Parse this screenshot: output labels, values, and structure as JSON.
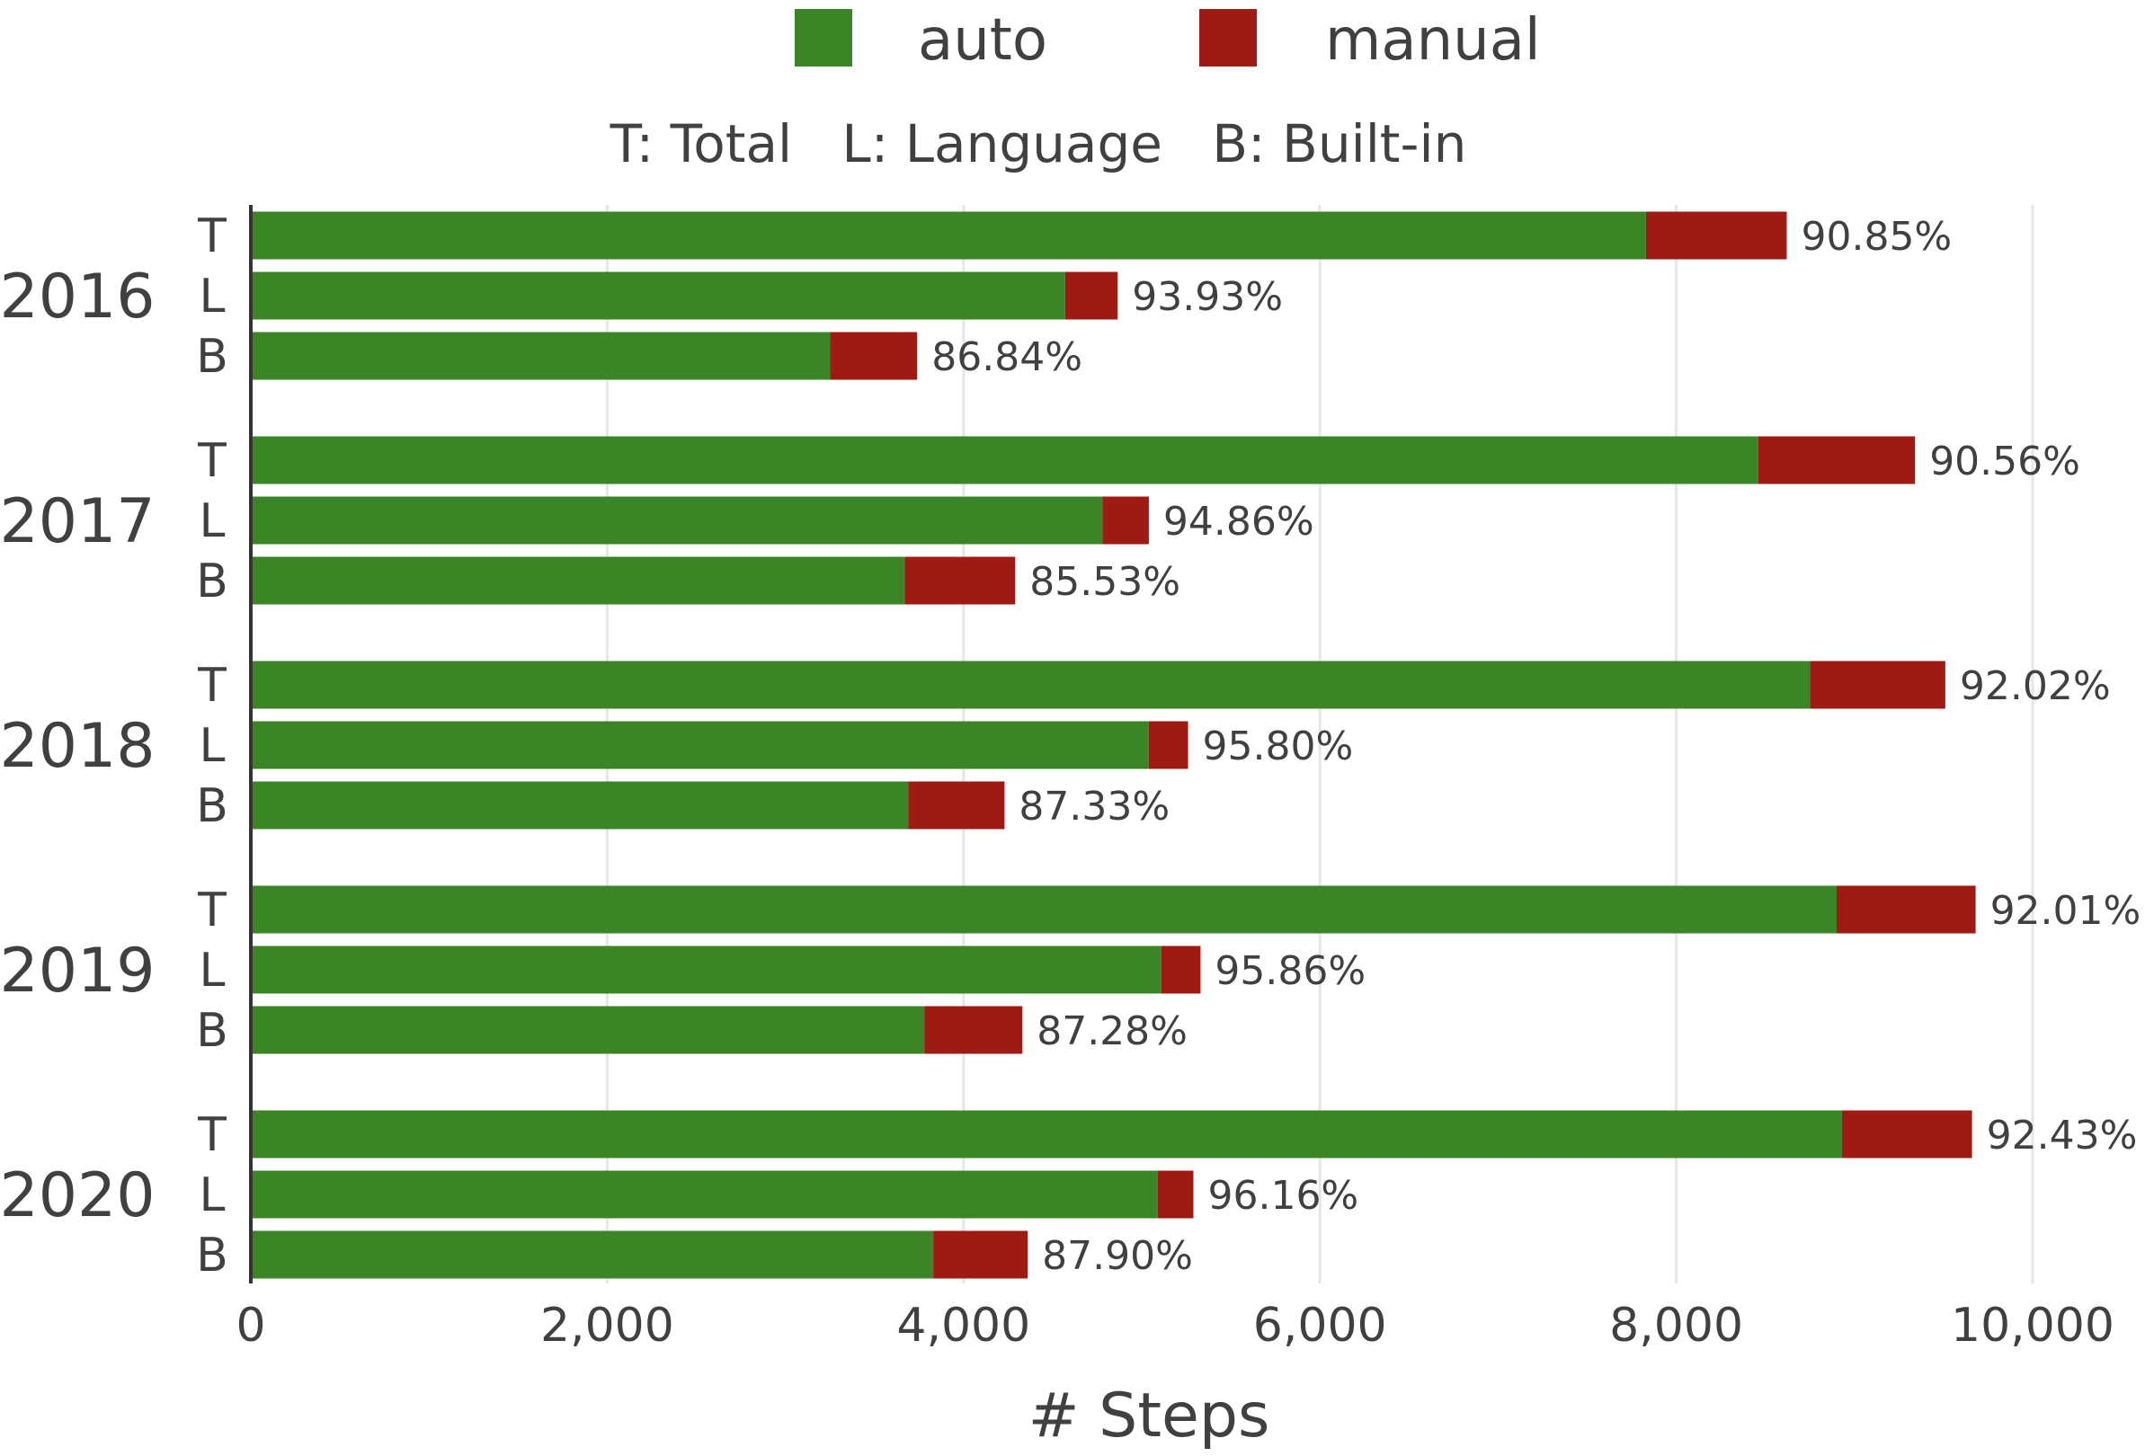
{
  "chart_data": {
    "type": "bar",
    "orientation": "horizontal",
    "stacked": true,
    "subtitle": "T: Total   L: Language   B: Built-in",
    "xlabel": "# Steps",
    "ylabel": "",
    "xlim": [
      0,
      10000
    ],
    "xticks": [
      {
        "value": 0,
        "label": "0"
      },
      {
        "value": 2000,
        "label": "2,000"
      },
      {
        "value": 4000,
        "label": "4,000"
      },
      {
        "value": 6000,
        "label": "6,000"
      },
      {
        "value": 8000,
        "label": "8,000"
      },
      {
        "value": 10000,
        "label": "10,000"
      }
    ],
    "grid": true,
    "legend": {
      "position": "top",
      "entries": [
        {
          "name": "auto",
          "color": "#3c8527"
        },
        {
          "name": "manual",
          "color": "#9e1b14"
        }
      ]
    },
    "groups": [
      {
        "year": "2016",
        "rows": [
          {
            "label": "T",
            "auto": 7830,
            "manual": 790,
            "pct": "90.85%"
          },
          {
            "label": "L",
            "auto": 4570,
            "manual": 295,
            "pct": "93.93%"
          },
          {
            "label": "B",
            "auto": 3250,
            "manual": 490,
            "pct": "86.84%"
          }
        ]
      },
      {
        "year": "2017",
        "rows": [
          {
            "label": "T",
            "auto": 8460,
            "manual": 880,
            "pct": "90.56%"
          },
          {
            "label": "L",
            "auto": 4780,
            "manual": 260,
            "pct": "94.86%"
          },
          {
            "label": "B",
            "auto": 3670,
            "manual": 620,
            "pct": "85.53%"
          }
        ]
      },
      {
        "year": "2018",
        "rows": [
          {
            "label": "T",
            "auto": 8750,
            "manual": 760,
            "pct": "92.02%"
          },
          {
            "label": "L",
            "auto": 5040,
            "manual": 220,
            "pct": "95.80%"
          },
          {
            "label": "B",
            "auto": 3690,
            "manual": 540,
            "pct": "87.33%"
          }
        ]
      },
      {
        "year": "2019",
        "rows": [
          {
            "label": "T",
            "auto": 8900,
            "manual": 780,
            "pct": "92.01%"
          },
          {
            "label": "L",
            "auto": 5110,
            "manual": 220,
            "pct": "95.86%"
          },
          {
            "label": "B",
            "auto": 3780,
            "manual": 550,
            "pct": "87.28%"
          }
        ]
      },
      {
        "year": "2020",
        "rows": [
          {
            "label": "T",
            "auto": 8930,
            "manual": 730,
            "pct": "92.43%"
          },
          {
            "label": "L",
            "auto": 5090,
            "manual": 200,
            "pct": "96.16%"
          },
          {
            "label": "B",
            "auto": 3830,
            "manual": 530,
            "pct": "87.90%"
          }
        ]
      }
    ]
  }
}
